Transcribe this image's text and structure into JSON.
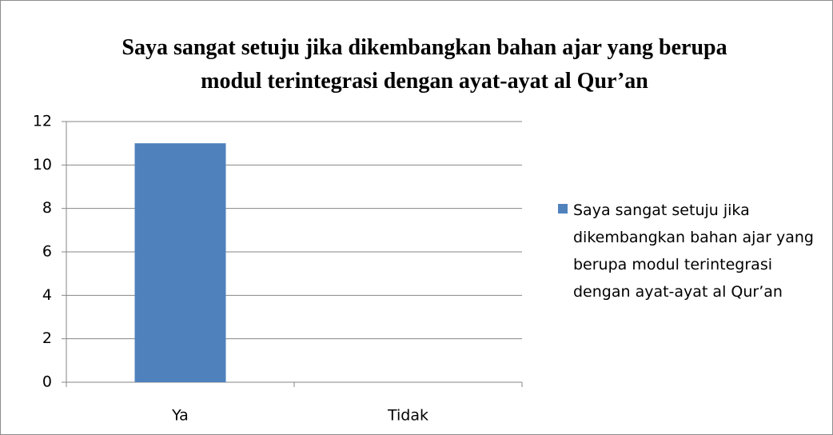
{
  "chart_data": {
    "type": "bar",
    "title": "Saya sangat setuju jika dikembangkan bahan ajar yang berupa modul terintegrasi dengan ayat-ayat al Qur’an",
    "categories": [
      "Ya",
      "Tidak"
    ],
    "series": [
      {
        "name": "Saya sangat setuju jika dikembangkan bahan ajar yang berupa modul terintegrasi dengan ayat-ayat al Qur’an",
        "color": "#4f81bd",
        "values": [
          11,
          0
        ]
      }
    ],
    "ylim": [
      0,
      12
    ],
    "yticks": [
      0,
      2,
      4,
      6,
      8,
      10,
      12
    ],
    "grid": true,
    "legend": "right"
  }
}
